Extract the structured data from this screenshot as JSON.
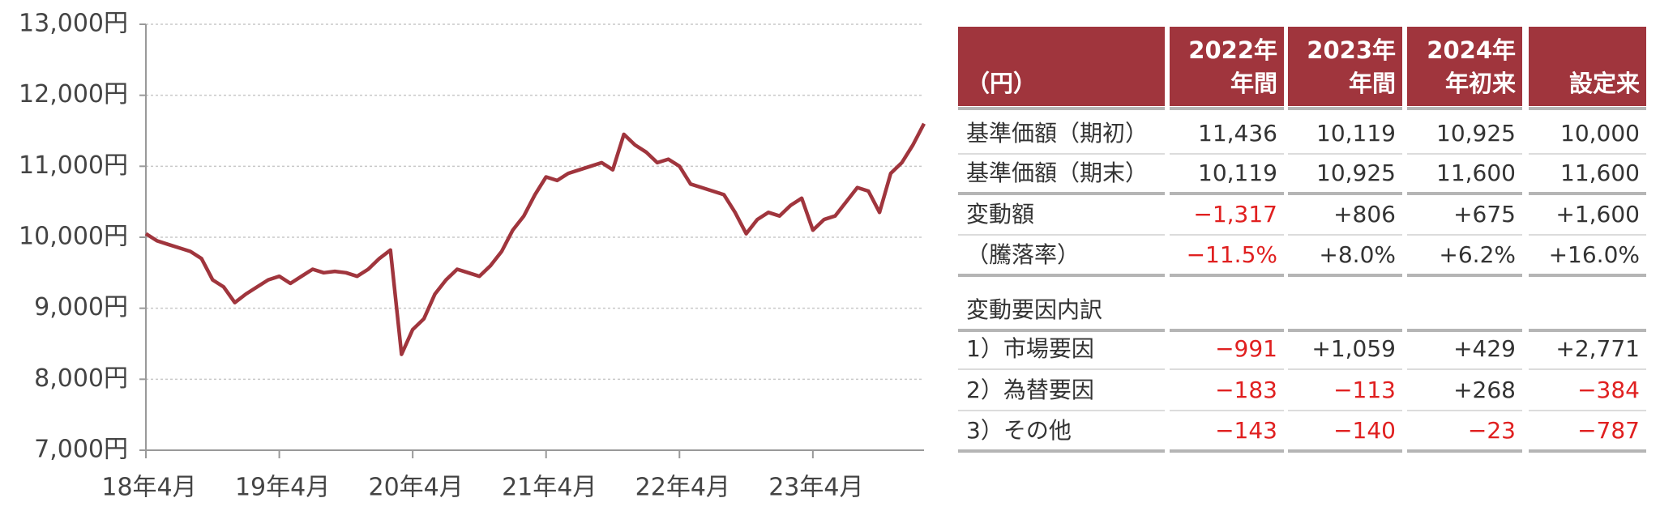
{
  "chart_data": {
    "type": "line",
    "color": "#a0353d",
    "grid": true,
    "x": [
      "18年4月",
      "18年5月",
      "18年6月",
      "18年7月",
      "18年8月",
      "18年9月",
      "18年10月",
      "18年11月",
      "18年12月",
      "19年1月",
      "19年2月",
      "19年3月",
      "19年4月",
      "19年5月",
      "19年6月",
      "19年7月",
      "19年8月",
      "19年9月",
      "19年10月",
      "19年11月",
      "19年12月",
      "20年1月",
      "20年2月",
      "20年3月",
      "20年4月",
      "20年5月",
      "20年6月",
      "20年7月",
      "20年8月",
      "20年9月",
      "20年10月",
      "20年11月",
      "20年12月",
      "21年1月",
      "21年2月",
      "21年3月",
      "21年4月",
      "21年5月",
      "21年6月",
      "21年7月",
      "21年8月",
      "21年9月",
      "21年10月",
      "21年11月",
      "21年12月",
      "22年1月",
      "22年2月",
      "22年3月",
      "22年4月",
      "22年5月",
      "22年6月",
      "22年7月",
      "22年8月",
      "22年9月",
      "22年10月",
      "22年11月",
      "22年12月",
      "23年1月",
      "23年2月",
      "23年3月",
      "23年4月",
      "23年5月",
      "23年6月",
      "23年7月",
      "23年8月",
      "23年9月",
      "23年10月",
      "23年11月",
      "23年12月",
      "24年1月",
      "24年2月"
    ],
    "values": [
      10050,
      9950,
      9900,
      9850,
      9800,
      9700,
      9400,
      9300,
      9080,
      9200,
      9300,
      9400,
      9450,
      9350,
      9450,
      9550,
      9500,
      9520,
      9500,
      9450,
      9550,
      9700,
      9820,
      8350,
      8700,
      8850,
      9200,
      9400,
      9550,
      9500,
      9450,
      9600,
      9800,
      10100,
      10300,
      10600,
      10850,
      10800,
      10900,
      10950,
      11000,
      11050,
      10950,
      11450,
      11300,
      11200,
      11050,
      11100,
      11000,
      10750,
      10700,
      10650,
      10600,
      10350,
      10050,
      10250,
      10350,
      10300,
      10450,
      10550,
      10100,
      10250,
      10300,
      10500,
      10700,
      10650,
      10350,
      10900,
      11050,
      11300,
      11600
    ],
    "ylim": [
      7000,
      13000
    ],
    "yticks": [
      {
        "value": 7000,
        "label": "7,000円"
      },
      {
        "value": 8000,
        "label": "8,000円"
      },
      {
        "value": 9000,
        "label": "9,000円"
      },
      {
        "value": 10000,
        "label": "10,000円"
      },
      {
        "value": 11000,
        "label": "11,000円"
      },
      {
        "value": 12000,
        "label": "12,000円"
      },
      {
        "value": 13000,
        "label": "13,000円"
      }
    ],
    "xticks": [
      "18年4月",
      "19年4月",
      "20年4月",
      "21年4月",
      "22年4月",
      "23年4月"
    ]
  },
  "table": {
    "header": [
      [
        "（円）"
      ],
      [
        "2022年",
        "年間"
      ],
      [
        "2023年",
        "年間"
      ],
      [
        "2024年",
        "年初来"
      ],
      [
        "設定来"
      ]
    ],
    "rows": [
      [
        "基準価額（期初）",
        "11,436",
        "10,119",
        "10,925",
        "10,000"
      ],
      [
        "基準価額（期末）",
        "10,119",
        "10,925",
        "11,600",
        "11,600"
      ],
      [
        "変動額",
        "−1,317",
        "+806",
        "+675",
        "+1,600"
      ],
      [
        "（騰落率）",
        "−11.5%",
        "+8.0%",
        "+6.2%",
        "+16.0%"
      ],
      [
        "変動要因内訳"
      ],
      [
        "1）市場要因",
        "−991",
        "+1,059",
        "+429",
        "+2,771"
      ],
      [
        "2）為替要因",
        "−183",
        "−113",
        "+268",
        "−384"
      ],
      [
        "3）その他",
        "−143",
        "−140",
        "−23",
        "−787"
      ]
    ]
  }
}
